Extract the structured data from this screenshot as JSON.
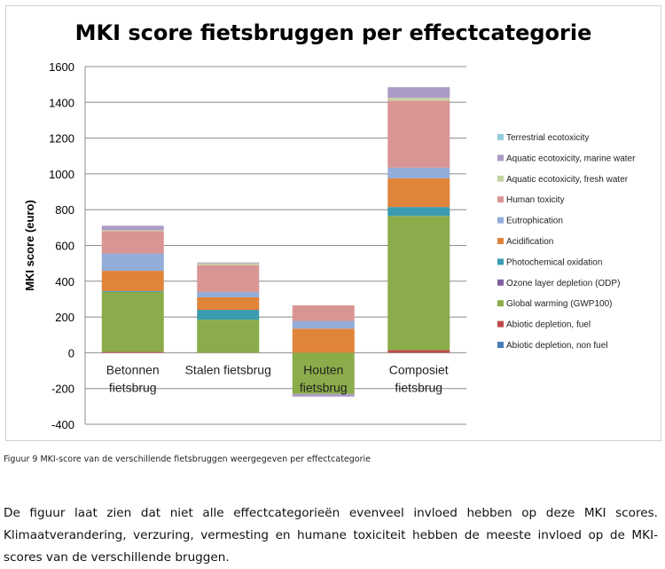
{
  "chart_data": {
    "type": "stacked-bar",
    "title": "MKI score fietsbruggen per effectcategorie",
    "xlabel": "",
    "ylabel": "MKI score (euro)",
    "ylim": [
      -400,
      1600
    ],
    "yticks": [
      -400,
      -200,
      0,
      200,
      400,
      600,
      800,
      1000,
      1200,
      1400,
      1600
    ],
    "grid": true,
    "legend": "right",
    "categories": [
      "Betonnen fietsbrug",
      "Stalen fietsbrug",
      "Houten fietsbrug",
      "Composiet fietsbrug"
    ],
    "series": [
      {
        "name": "Abiotic depletion, non fuel",
        "color": "#4a7ebb",
        "values": [
          0,
          0,
          0,
          0
        ]
      },
      {
        "name": "Abiotic depletion, fuel",
        "color": "#be4b48",
        "values": [
          5,
          0,
          0,
          15
        ]
      },
      {
        "name": "Global warming (GWP100)",
        "color": "#8bac4a",
        "values": [
          335,
          185,
          -230,
          750
        ]
      },
      {
        "name": "Ozone layer depletion (ODP)",
        "color": "#7d5fa0",
        "values": [
          0,
          0,
          0,
          0
        ]
      },
      {
        "name": "Photochemical oxidation",
        "color": "#3b9bb0",
        "values": [
          5,
          55,
          0,
          50
        ]
      },
      {
        "name": "Acidification",
        "color": "#e0843a",
        "values": [
          113,
          70,
          135,
          160
        ]
      },
      {
        "name": "Eutrophication",
        "color": "#94add8",
        "values": [
          97,
          30,
          43,
          60
        ]
      },
      {
        "name": "Human toxicity",
        "color": "#d99594",
        "values": [
          125,
          150,
          87,
          375
        ]
      },
      {
        "name": "Aquatic ecotoxicity, fresh water",
        "color": "#c4d5a2",
        "values": [
          5,
          10,
          0,
          15
        ]
      },
      {
        "name": "Aquatic ecotoxicity, marine water",
        "color": "#ab9bc5",
        "values": [
          25,
          5,
          -15,
          60
        ]
      },
      {
        "name": "Terrestrial ecotoxicity",
        "color": "#92cddc",
        "values": [
          0,
          0,
          0,
          0
        ]
      }
    ]
  },
  "caption": "Figuur 9 MKI-score van de verschillende fietsbruggen weergegeven per effectcategorie",
  "paragraph": "De figuur laat zien dat niet alle effectcategorieën evenveel invloed hebben op deze MKI scores. Klimaatverandering, verzuring, vermesting en humane toxiciteit hebben de meeste invloed op de MKI-scores van de verschillende bruggen."
}
